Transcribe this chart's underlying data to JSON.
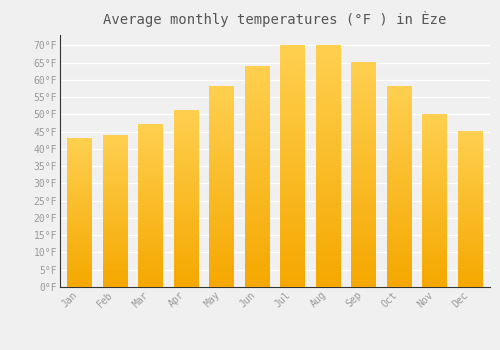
{
  "title": "Average monthly temperatures (°F ) in Èze",
  "months": [
    "Jan",
    "Feb",
    "Mar",
    "Apr",
    "May",
    "Jun",
    "Jul",
    "Aug",
    "Sep",
    "Oct",
    "Nov",
    "Dec"
  ],
  "values": [
    43,
    44,
    47,
    51,
    58,
    64,
    70,
    70,
    65,
    58,
    50,
    45
  ],
  "bar_color_bottom": "#F5A800",
  "bar_color_top": "#FFD050",
  "background_color": "#F0F0F0",
  "grid_color": "#FFFFFF",
  "ylim": [
    0,
    73
  ],
  "yticks": [
    0,
    5,
    10,
    15,
    20,
    25,
    30,
    35,
    40,
    45,
    50,
    55,
    60,
    65,
    70
  ],
  "tick_label_color": "#999999",
  "title_color": "#555555",
  "title_fontsize": 10,
  "bar_width": 0.7
}
